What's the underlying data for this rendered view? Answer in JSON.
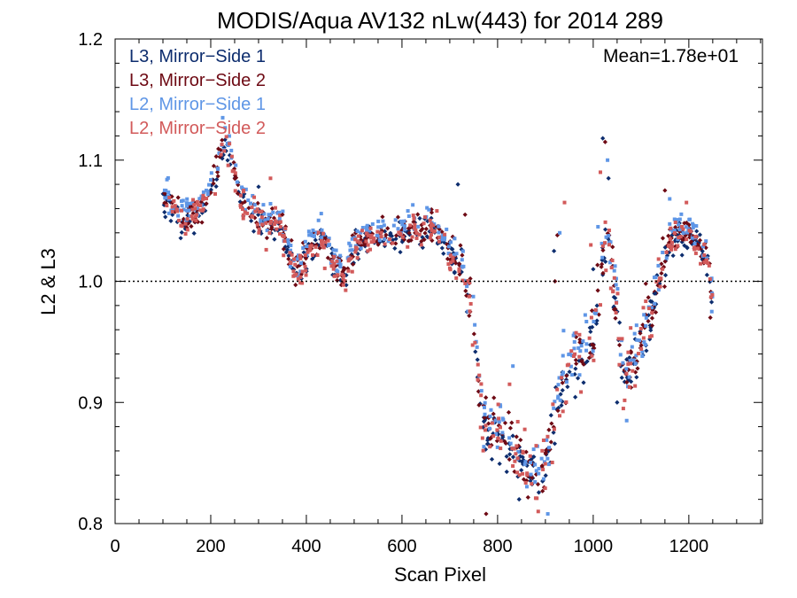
{
  "chart_data": {
    "type": "scatter",
    "title": "MODIS/Aqua AV132 nLw(443) for 2014 289",
    "xlabel": "Scan Pixel",
    "ylabel": "L2 & L3",
    "xlim": [
      0,
      1354
    ],
    "ylim": [
      0.8,
      1.2
    ],
    "x_ticks": [
      0,
      200,
      400,
      600,
      800,
      1000,
      1200
    ],
    "x_tick_labels": [
      "0",
      "200",
      "400",
      "600",
      "800",
      "1000",
      "1200"
    ],
    "y_ticks": [
      0.8,
      0.9,
      1.0,
      1.1,
      1.2
    ],
    "y_tick_labels": [
      "0.8",
      "0.9",
      "1.0",
      "1.1",
      "1.2"
    ],
    "reference_line": 1.0,
    "annotation": "Mean=1.78e+01",
    "annotation_color": "#d25a5a",
    "legend_position": "top-left",
    "profile": {
      "x": [
        100,
        120,
        140,
        160,
        180,
        200,
        215,
        230,
        245,
        260,
        280,
        300,
        320,
        340,
        360,
        380,
        400,
        420,
        440,
        460,
        480,
        500,
        520,
        540,
        560,
        580,
        600,
        620,
        640,
        660,
        680,
        700,
        720,
        740,
        750,
        760,
        770,
        780,
        800,
        820,
        840,
        860,
        880,
        900,
        920,
        940,
        960,
        980,
        1000,
        1010,
        1020,
        1030,
        1040,
        1050,
        1060,
        1080,
        1100,
        1120,
        1140,
        1160,
        1180,
        1200,
        1220,
        1240,
        1250
      ],
      "y": [
        1.072,
        1.06,
        1.05,
        1.055,
        1.06,
        1.075,
        1.095,
        1.118,
        1.1,
        1.07,
        1.055,
        1.052,
        1.045,
        1.05,
        1.03,
        1.005,
        1.025,
        1.035,
        1.03,
        1.015,
        1.005,
        1.028,
        1.035,
        1.04,
        1.038,
        1.035,
        1.04,
        1.045,
        1.04,
        1.05,
        1.035,
        1.025,
        1.015,
        0.99,
        0.96,
        0.92,
        0.88,
        0.88,
        0.88,
        0.87,
        0.86,
        0.845,
        0.84,
        0.845,
        0.89,
        0.925,
        0.935,
        0.945,
        0.955,
        0.99,
        1.02,
        1.04,
        1.01,
        0.975,
        0.935,
        0.93,
        0.95,
        0.975,
        1.005,
        1.035,
        1.04,
        1.04,
        1.03,
        1.015,
        0.985
      ]
    },
    "outliers": [
      {
        "x": 1020,
        "y": 1.118
      },
      {
        "x": 1025,
        "y": 1.115
      },
      {
        "x": 1030,
        "y": 1.1
      },
      {
        "x": 1015,
        "y": 1.09
      },
      {
        "x": 1032,
        "y": 1.085
      },
      {
        "x": 925,
        "y": 1.038
      },
      {
        "x": 930,
        "y": 1.04
      },
      {
        "x": 940,
        "y": 1.065
      },
      {
        "x": 918,
        "y": 1.025
      },
      {
        "x": 920,
        "y": 1.0
      },
      {
        "x": 1010,
        "y": 1.045
      },
      {
        "x": 995,
        "y": 1.03
      },
      {
        "x": 1000,
        "y": 1.01
      },
      {
        "x": 1150,
        "y": 1.075
      },
      {
        "x": 1160,
        "y": 1.068
      },
      {
        "x": 1195,
        "y": 1.065
      },
      {
        "x": 1130,
        "y": 0.99
      },
      {
        "x": 1110,
        "y": 0.998
      },
      {
        "x": 1070,
        "y": 0.885
      },
      {
        "x": 1063,
        "y": 0.895
      },
      {
        "x": 1050,
        "y": 0.9
      },
      {
        "x": 776,
        "y": 0.808
      },
      {
        "x": 905,
        "y": 0.808
      },
      {
        "x": 885,
        "y": 0.81
      },
      {
        "x": 717,
        "y": 1.08
      },
      {
        "x": 732,
        "y": 1.055
      },
      {
        "x": 225,
        "y": 1.135
      },
      {
        "x": 325,
        "y": 1.085
      },
      {
        "x": 300,
        "y": 1.078
      },
      {
        "x": 350,
        "y": 1.055
      },
      {
        "x": 832,
        "y": 0.93
      },
      {
        "x": 825,
        "y": 0.915
      },
      {
        "x": 845,
        "y": 0.82
      },
      {
        "x": 1245,
        "y": 0.97
      },
      {
        "x": 1248,
        "y": 0.975
      }
    ],
    "series": [
      {
        "name": "L3, Mirror−Side 1",
        "color": "#0d2d6e",
        "marker": "diamond",
        "offset": -0.003,
        "spread": 0.012,
        "count": 420
      },
      {
        "name": "L3, Mirror−Side 2",
        "color": "#6e0a14",
        "marker": "diamond",
        "offset": 0.0,
        "spread": 0.012,
        "count": 420
      },
      {
        "name": "L2, Mirror−Side 1",
        "color": "#5f96e6",
        "marker": "square",
        "offset": 0.006,
        "spread": 0.012,
        "count": 380
      },
      {
        "name": "L2, Mirror−Side 2",
        "color": "#d25a5a",
        "marker": "square",
        "offset": -0.002,
        "spread": 0.014,
        "count": 380
      }
    ]
  }
}
